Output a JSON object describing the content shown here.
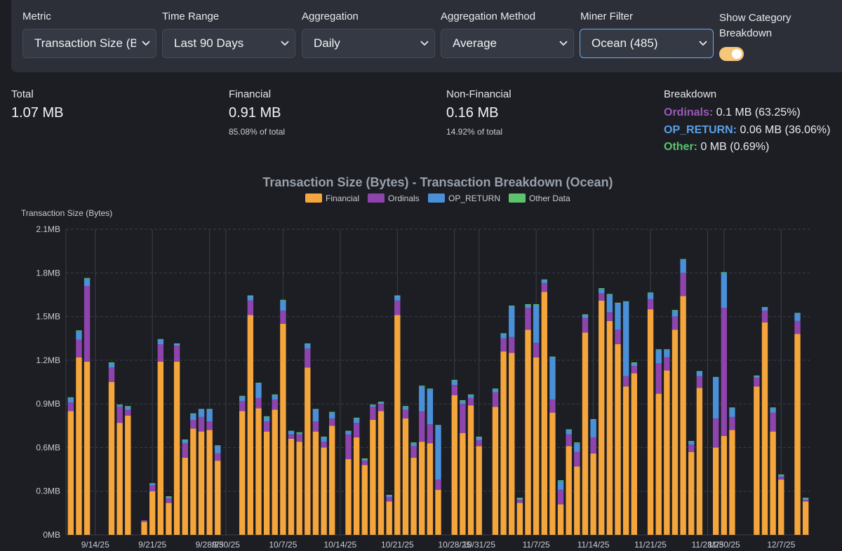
{
  "filters": {
    "metric": {
      "label": "Metric",
      "value": "Transaction Size (B"
    },
    "time_range": {
      "label": "Time Range",
      "value": "Last 90 Days"
    },
    "aggregation": {
      "label": "Aggregation",
      "value": "Daily"
    },
    "aggregation_method": {
      "label": "Aggregation Method",
      "value": "Average"
    },
    "miner_filter": {
      "label": "Miner Filter",
      "value": "Ocean (485)"
    },
    "category_toggle": {
      "label": "Show Category Breakdown",
      "on": true
    }
  },
  "stats": {
    "total": {
      "label": "Total",
      "value": "1.07 MB"
    },
    "financial": {
      "label": "Financial",
      "value": "0.91 MB",
      "sub": "85.08% of total"
    },
    "non_financial": {
      "label": "Non-Financial",
      "value": "0.16 MB",
      "sub": "14.92% of total"
    },
    "breakdown": {
      "label": "Breakdown",
      "ordinals": {
        "name": "Ordinals:",
        "value": "0.1 MB (63.25%)"
      },
      "op_return": {
        "name": "OP_RETURN:",
        "value": "0.06 MB (36.06%)"
      },
      "other": {
        "name": "Other:",
        "value": "0 MB (0.69%)"
      }
    }
  },
  "colors": {
    "financial": "#f4a53c",
    "ordinals": "#8e44ad",
    "op_return": "#4a90d9",
    "other": "#5cc46d"
  },
  "chart_data": {
    "type": "bar",
    "stacked": true,
    "title": "Transaction Size (Bytes) - Transaction Breakdown (Ocean)",
    "ylabel": "Transaction Size (Bytes)",
    "xlabel": "",
    "ylim": [
      0,
      2.1
    ],
    "unit": "MB",
    "yticks": [
      "0MB",
      "0.3MB",
      "0.6MB",
      "0.9MB",
      "1.2MB",
      "1.5MB",
      "1.8MB",
      "2.1MB"
    ],
    "xticks": [
      {
        "label": "9/14/25",
        "i": 3
      },
      {
        "label": "9/21/25",
        "i": 10
      },
      {
        "label": "9/28/25",
        "i": 17
      },
      {
        "label": "9/30/25",
        "i": 19
      },
      {
        "label": "10/7/25",
        "i": 26
      },
      {
        "label": "10/14/25",
        "i": 33
      },
      {
        "label": "10/21/25",
        "i": 40
      },
      {
        "label": "10/28/25",
        "i": 47
      },
      {
        "label": "10/31/25",
        "i": 50
      },
      {
        "label": "11/7/25",
        "i": 57
      },
      {
        "label": "11/14/25",
        "i": 64
      },
      {
        "label": "11/21/25",
        "i": 71
      },
      {
        "label": "11/28/25",
        "i": 78
      },
      {
        "label": "11/30/25",
        "i": 80
      },
      {
        "label": "12/7/25",
        "i": 87
      }
    ],
    "legend": [
      "Financial",
      "Ordinals",
      "OP_RETURN",
      "Other Data"
    ],
    "series": [
      {
        "name": "Financial",
        "values": [
          0.85,
          1.22,
          1.19,
          0,
          0,
          1.05,
          0.77,
          0.82,
          0,
          0.09,
          0.3,
          1.19,
          0.22,
          1.19,
          0.53,
          0.73,
          0.71,
          0.72,
          0.51,
          0,
          0,
          0.85,
          1.51,
          0.87,
          0.71,
          0.86,
          1.45,
          0.66,
          0.64,
          1.15,
          0.71,
          0.6,
          0.75,
          0,
          0.52,
          0.67,
          0.48,
          0.79,
          0.85,
          0.23,
          1.51,
          0.8,
          0.53,
          0.64,
          0.63,
          0.31,
          0,
          0.96,
          0.7,
          0.89,
          0.61,
          0,
          0.88,
          1.26,
          1.25,
          0.22,
          1.41,
          1.22,
          1.67,
          0.84,
          0.21,
          0.61,
          0.47,
          1.39,
          0.56,
          1.61,
          1.47,
          1.31,
          1.02,
          1.11,
          0,
          1.55,
          0.97,
          1.13,
          1.41,
          1.64,
          0.57,
          1.01,
          0,
          0.6,
          0.68,
          0.72,
          0,
          0,
          1.02,
          1.46,
          0.71,
          0.38,
          0,
          1.38,
          0.23
        ]
      },
      {
        "name": "Ordinals",
        "values": [
          0.06,
          0.12,
          0.52,
          0,
          0,
          0.1,
          0.11,
          0.04,
          0,
          0.01,
          0.04,
          0.12,
          0.03,
          0.11,
          0.1,
          0.06,
          0.1,
          0.06,
          0.05,
          0,
          0,
          0.07,
          0.1,
          0.07,
          0.07,
          0.07,
          0.09,
          0.03,
          0.05,
          0.13,
          0.07,
          0.04,
          0.05,
          0,
          0.17,
          0.1,
          0.03,
          0.09,
          0.05,
          0.03,
          0.1,
          0.06,
          0.08,
          0.21,
          0.13,
          0.07,
          0,
          0.07,
          0.2,
          0.05,
          0.04,
          0,
          0.1,
          0.09,
          0.11,
          0.02,
          0.15,
          0.1,
          0.06,
          0.09,
          0.1,
          0.08,
          0.1,
          0.1,
          0.11,
          0.05,
          0.06,
          0.1,
          0.07,
          0.05,
          0,
          0.07,
          0.21,
          0.09,
          0.09,
          0.16,
          0.05,
          0.08,
          0,
          0.2,
          0.88,
          0.09,
          0,
          0,
          0.06,
          0.08,
          0.13,
          0.02,
          0,
          0.09,
          0.01
        ]
      },
      {
        "name": "OP_RETURN",
        "values": [
          0.03,
          0.06,
          0.05,
          0,
          0,
          0.03,
          0.01,
          0.02,
          0,
          0,
          0.01,
          0.03,
          0.01,
          0.01,
          0.02,
          0.04,
          0.05,
          0.08,
          0.05,
          0,
          0,
          0.03,
          0.03,
          0.1,
          0.03,
          0.03,
          0.07,
          0.02,
          0.01,
          0.03,
          0.08,
          0.03,
          0.04,
          0,
          0.02,
          0.03,
          0.01,
          0.01,
          0.01,
          0.01,
          0.03,
          0.02,
          0.02,
          0.17,
          0.24,
          0.37,
          0,
          0.03,
          0.02,
          0.02,
          0.02,
          0,
          0.02,
          0.03,
          0.21,
          0.01,
          0.02,
          0.26,
          0.02,
          0.29,
          0.06,
          0.03,
          0.06,
          0.02,
          0.12,
          0.03,
          0.12,
          0.18,
          0.51,
          0.02,
          0,
          0.04,
          0.09,
          0.05,
          0.04,
          0.09,
          0.02,
          0.03,
          0,
          0.28,
          0.24,
          0.06,
          0,
          0,
          0.01,
          0.02,
          0.03,
          0.01,
          0,
          0.05,
          0.01
        ]
      },
      {
        "name": "Other Data",
        "values": [
          0.005,
          0.005,
          0.005,
          0,
          0,
          0.005,
          0.005,
          0.005,
          0,
          0,
          0.005,
          0.005,
          0.005,
          0.005,
          0.005,
          0.005,
          0.005,
          0.005,
          0.005,
          0,
          0,
          0.005,
          0.005,
          0.005,
          0.005,
          0.005,
          0.005,
          0.005,
          0.005,
          0.005,
          0.005,
          0.005,
          0.005,
          0,
          0.005,
          0.005,
          0.005,
          0.005,
          0.005,
          0.005,
          0.005,
          0.005,
          0.005,
          0.005,
          0.005,
          0.005,
          0,
          0.005,
          0.005,
          0.005,
          0.005,
          0,
          0.005,
          0.005,
          0.005,
          0.005,
          0.005,
          0.005,
          0.005,
          0.005,
          0.005,
          0.005,
          0.005,
          0.005,
          0.005,
          0.005,
          0.005,
          0.005,
          0.005,
          0.005,
          0,
          0.005,
          0.005,
          0.005,
          0.005,
          0.005,
          0.005,
          0.005,
          0,
          0.005,
          0.005,
          0.005,
          0,
          0,
          0.005,
          0.005,
          0.005,
          0.005,
          0,
          0.005,
          0.005
        ]
      }
    ]
  }
}
